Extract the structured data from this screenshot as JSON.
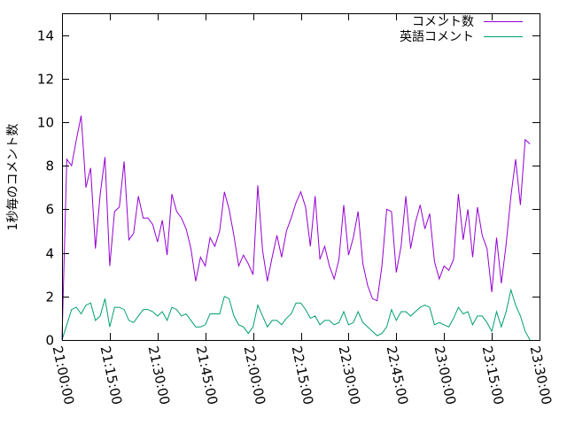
{
  "chart_data": {
    "type": "line",
    "title": "",
    "xlabel": "",
    "ylabel": "1秒毎のコメント数",
    "xlim": [
      "21:00:00",
      "23:30:00"
    ],
    "ylim": [
      0,
      15
    ],
    "grid": false,
    "legend_position": "top-right",
    "x_ticks": [
      "21:00:00",
      "21:15:00",
      "21:30:00",
      "21:45:00",
      "22:00:00",
      "22:15:00",
      "22:30:00",
      "22:45:00",
      "23:00:00",
      "23:15:00",
      "23:30:00"
    ],
    "y_ticks": [
      "0",
      "2",
      "4",
      "6",
      "8",
      "10",
      "12",
      "14"
    ],
    "sample_interval_minutes": 1.5,
    "series": [
      {
        "name": "コメント数",
        "color": "#9400d3",
        "values": [
          0.0,
          8.3,
          8.0,
          9.2,
          10.3,
          7.0,
          7.9,
          4.2,
          6.7,
          8.4,
          3.4,
          5.9,
          6.1,
          8.2,
          4.6,
          4.9,
          6.6,
          5.6,
          5.6,
          5.3,
          4.5,
          5.5,
          3.9,
          6.7,
          5.9,
          5.6,
          5.1,
          4.2,
          2.7,
          3.8,
          3.4,
          4.7,
          4.3,
          5.0,
          6.8,
          6.0,
          4.8,
          3.4,
          3.9,
          3.5,
          3.0,
          7.1,
          4.1,
          2.7,
          3.8,
          4.8,
          3.8,
          5.0,
          5.6,
          6.3,
          6.8,
          6.1,
          4.3,
          6.6,
          3.7,
          4.3,
          3.4,
          2.8,
          3.7,
          6.2,
          3.9,
          4.7,
          5.9,
          3.5,
          2.5,
          1.9,
          1.8,
          3.4,
          6.0,
          5.9,
          3.1,
          4.3,
          6.6,
          4.2,
          5.4,
          6.2,
          5.1,
          5.8,
          3.6,
          2.8,
          3.4,
          3.2,
          3.7,
          6.7,
          4.6,
          6.0,
          3.8,
          6.1,
          4.8,
          4.2,
          2.2,
          4.7,
          2.6,
          4.4,
          6.6,
          8.3,
          6.2,
          9.2,
          9.0
        ]
      },
      {
        "name": "英語コメント",
        "color": "#009e73",
        "values": [
          0.0,
          0.7,
          1.4,
          1.5,
          1.2,
          1.6,
          1.7,
          0.9,
          1.1,
          1.9,
          0.6,
          1.5,
          1.5,
          1.4,
          0.9,
          0.8,
          1.1,
          1.4,
          1.4,
          1.3,
          1.1,
          1.3,
          0.9,
          1.5,
          1.4,
          1.1,
          1.2,
          0.9,
          0.6,
          0.6,
          0.7,
          1.2,
          1.2,
          1.2,
          2.0,
          1.9,
          1.1,
          0.7,
          0.6,
          0.3,
          0.6,
          1.6,
          1.1,
          0.6,
          0.9,
          0.9,
          0.7,
          1.0,
          1.2,
          1.7,
          1.7,
          1.4,
          1.0,
          1.1,
          0.7,
          0.9,
          0.9,
          0.7,
          0.8,
          1.3,
          0.7,
          0.8,
          1.3,
          0.8,
          0.6,
          0.4,
          0.2,
          0.3,
          0.6,
          1.4,
          0.9,
          1.3,
          1.3,
          1.1,
          1.3,
          1.5,
          1.6,
          1.5,
          0.7,
          0.8,
          0.7,
          0.6,
          1.0,
          1.5,
          1.2,
          1.3,
          0.7,
          1.1,
          1.1,
          0.8,
          0.4,
          1.3,
          0.6,
          1.3,
          2.3,
          1.6,
          1.1,
          0.4,
          0.0
        ]
      }
    ]
  }
}
